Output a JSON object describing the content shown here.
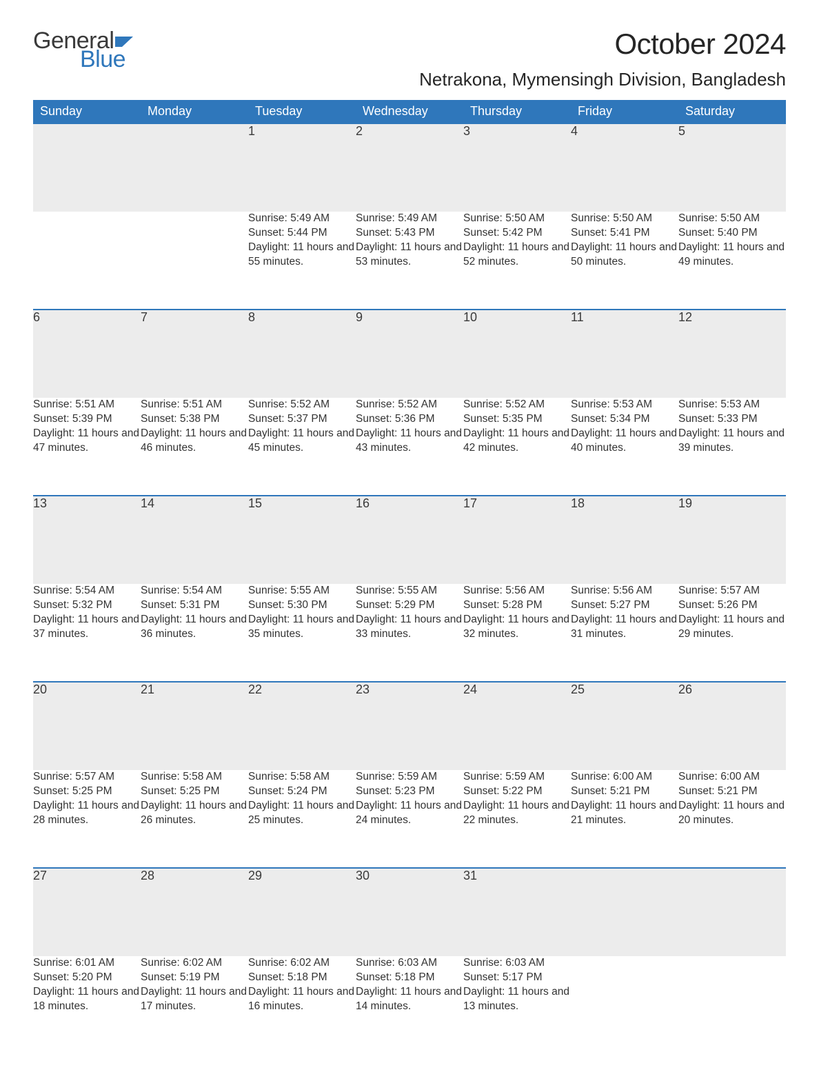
{
  "logo": {
    "text1": "General",
    "text2": "Blue",
    "flag_color": "#2f77bb"
  },
  "header": {
    "month_title": "October 2024",
    "location": "Netrakona, Mymensingh Division, Bangladesh"
  },
  "colors": {
    "header_bg": "#2f77bb",
    "header_text": "#ffffff",
    "daynum_bg": "#ececec",
    "rule": "#2f77bb",
    "text": "#333333",
    "background": "#ffffff"
  },
  "typography": {
    "month_title_fontsize": 42,
    "location_fontsize": 26,
    "weekday_fontsize": 18,
    "daynum_fontsize": 18,
    "body_fontsize": 15.5
  },
  "calendar": {
    "type": "table",
    "columns": [
      "Sunday",
      "Monday",
      "Tuesday",
      "Wednesday",
      "Thursday",
      "Friday",
      "Saturday"
    ],
    "weeks": [
      [
        null,
        null,
        {
          "n": "1",
          "sunrise": "5:49 AM",
          "sunset": "5:44 PM",
          "daylight": "11 hours and 55 minutes."
        },
        {
          "n": "2",
          "sunrise": "5:49 AM",
          "sunset": "5:43 PM",
          "daylight": "11 hours and 53 minutes."
        },
        {
          "n": "3",
          "sunrise": "5:50 AM",
          "sunset": "5:42 PM",
          "daylight": "11 hours and 52 minutes."
        },
        {
          "n": "4",
          "sunrise": "5:50 AM",
          "sunset": "5:41 PM",
          "daylight": "11 hours and 50 minutes."
        },
        {
          "n": "5",
          "sunrise": "5:50 AM",
          "sunset": "5:40 PM",
          "daylight": "11 hours and 49 minutes."
        }
      ],
      [
        {
          "n": "6",
          "sunrise": "5:51 AM",
          "sunset": "5:39 PM",
          "daylight": "11 hours and 47 minutes."
        },
        {
          "n": "7",
          "sunrise": "5:51 AM",
          "sunset": "5:38 PM",
          "daylight": "11 hours and 46 minutes."
        },
        {
          "n": "8",
          "sunrise": "5:52 AM",
          "sunset": "5:37 PM",
          "daylight": "11 hours and 45 minutes."
        },
        {
          "n": "9",
          "sunrise": "5:52 AM",
          "sunset": "5:36 PM",
          "daylight": "11 hours and 43 minutes."
        },
        {
          "n": "10",
          "sunrise": "5:52 AM",
          "sunset": "5:35 PM",
          "daylight": "11 hours and 42 minutes."
        },
        {
          "n": "11",
          "sunrise": "5:53 AM",
          "sunset": "5:34 PM",
          "daylight": "11 hours and 40 minutes."
        },
        {
          "n": "12",
          "sunrise": "5:53 AM",
          "sunset": "5:33 PM",
          "daylight": "11 hours and 39 minutes."
        }
      ],
      [
        {
          "n": "13",
          "sunrise": "5:54 AM",
          "sunset": "5:32 PM",
          "daylight": "11 hours and 37 minutes."
        },
        {
          "n": "14",
          "sunrise": "5:54 AM",
          "sunset": "5:31 PM",
          "daylight": "11 hours and 36 minutes."
        },
        {
          "n": "15",
          "sunrise": "5:55 AM",
          "sunset": "5:30 PM",
          "daylight": "11 hours and 35 minutes."
        },
        {
          "n": "16",
          "sunrise": "5:55 AM",
          "sunset": "5:29 PM",
          "daylight": "11 hours and 33 minutes."
        },
        {
          "n": "17",
          "sunrise": "5:56 AM",
          "sunset": "5:28 PM",
          "daylight": "11 hours and 32 minutes."
        },
        {
          "n": "18",
          "sunrise": "5:56 AM",
          "sunset": "5:27 PM",
          "daylight": "11 hours and 31 minutes."
        },
        {
          "n": "19",
          "sunrise": "5:57 AM",
          "sunset": "5:26 PM",
          "daylight": "11 hours and 29 minutes."
        }
      ],
      [
        {
          "n": "20",
          "sunrise": "5:57 AM",
          "sunset": "5:25 PM",
          "daylight": "11 hours and 28 minutes."
        },
        {
          "n": "21",
          "sunrise": "5:58 AM",
          "sunset": "5:25 PM",
          "daylight": "11 hours and 26 minutes."
        },
        {
          "n": "22",
          "sunrise": "5:58 AM",
          "sunset": "5:24 PM",
          "daylight": "11 hours and 25 minutes."
        },
        {
          "n": "23",
          "sunrise": "5:59 AM",
          "sunset": "5:23 PM",
          "daylight": "11 hours and 24 minutes."
        },
        {
          "n": "24",
          "sunrise": "5:59 AM",
          "sunset": "5:22 PM",
          "daylight": "11 hours and 22 minutes."
        },
        {
          "n": "25",
          "sunrise": "6:00 AM",
          "sunset": "5:21 PM",
          "daylight": "11 hours and 21 minutes."
        },
        {
          "n": "26",
          "sunrise": "6:00 AM",
          "sunset": "5:21 PM",
          "daylight": "11 hours and 20 minutes."
        }
      ],
      [
        {
          "n": "27",
          "sunrise": "6:01 AM",
          "sunset": "5:20 PM",
          "daylight": "11 hours and 18 minutes."
        },
        {
          "n": "28",
          "sunrise": "6:02 AM",
          "sunset": "5:19 PM",
          "daylight": "11 hours and 17 minutes."
        },
        {
          "n": "29",
          "sunrise": "6:02 AM",
          "sunset": "5:18 PM",
          "daylight": "11 hours and 16 minutes."
        },
        {
          "n": "30",
          "sunrise": "6:03 AM",
          "sunset": "5:18 PM",
          "daylight": "11 hours and 14 minutes."
        },
        {
          "n": "31",
          "sunrise": "6:03 AM",
          "sunset": "5:17 PM",
          "daylight": "11 hours and 13 minutes."
        },
        null,
        null
      ]
    ],
    "labels": {
      "sunrise": "Sunrise:",
      "sunset": "Sunset:",
      "daylight": "Daylight:"
    }
  }
}
